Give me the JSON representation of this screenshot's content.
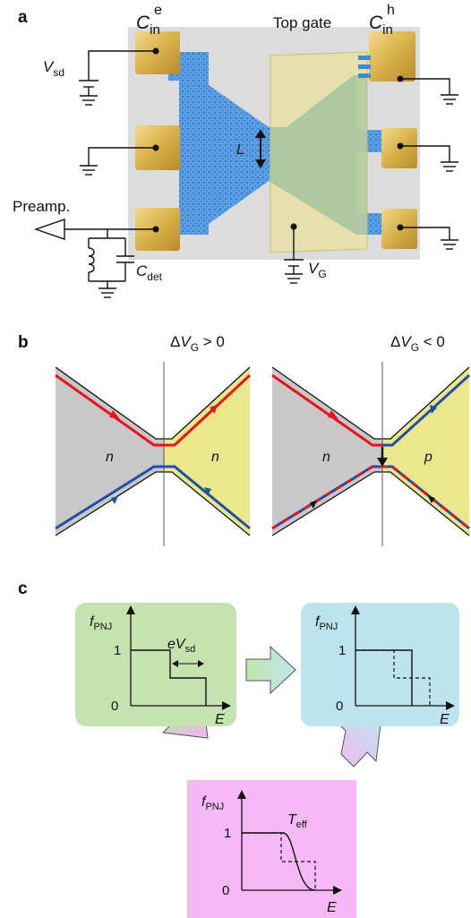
{
  "panel_a": {
    "label": "a",
    "cin_e": {
      "main": "C",
      "sub": "in",
      "sup": "e"
    },
    "cin_h": {
      "main": "C",
      "sub": "in",
      "sup": "h"
    },
    "top_gate": "Top gate",
    "vsd": {
      "main": "V",
      "sub": "sd"
    },
    "length": "L",
    "preamp": "Preamp.",
    "cdet": {
      "main": "C",
      "sub": "det"
    },
    "vg": {
      "main": "V",
      "sub": "G"
    }
  },
  "panel_b": {
    "label": "b",
    "left_condition": {
      "pre": "Δ",
      "main": "V",
      "sub": "G",
      "post": " > 0"
    },
    "right_condition": {
      "pre": "Δ",
      "main": "V",
      "sub": "G",
      "post": " < 0"
    },
    "left_region_label": "n",
    "left_gate_label": "n",
    "right_region_label": "n",
    "right_gate_label": "p",
    "colors": {
      "electron_edge": "#e8141c",
      "hole_edge": "#1f4fa8",
      "gated": "#f6f39a",
      "ungated": "#c9c9c9"
    }
  },
  "panel_c": {
    "label": "c",
    "f_label": {
      "main": "f",
      "sub": "PNJ"
    },
    "energy_axis": "E",
    "tick_one": "1",
    "tick_zero": "0",
    "bias_label": {
      "main": "eV",
      "sub": "sd"
    },
    "teff_label": {
      "main": "T",
      "sub": "eff"
    },
    "colors": {
      "initial_box": "#c4e3ae",
      "final_box": "#bde3ee",
      "thermal_box": "#f6b8f6"
    }
  }
}
